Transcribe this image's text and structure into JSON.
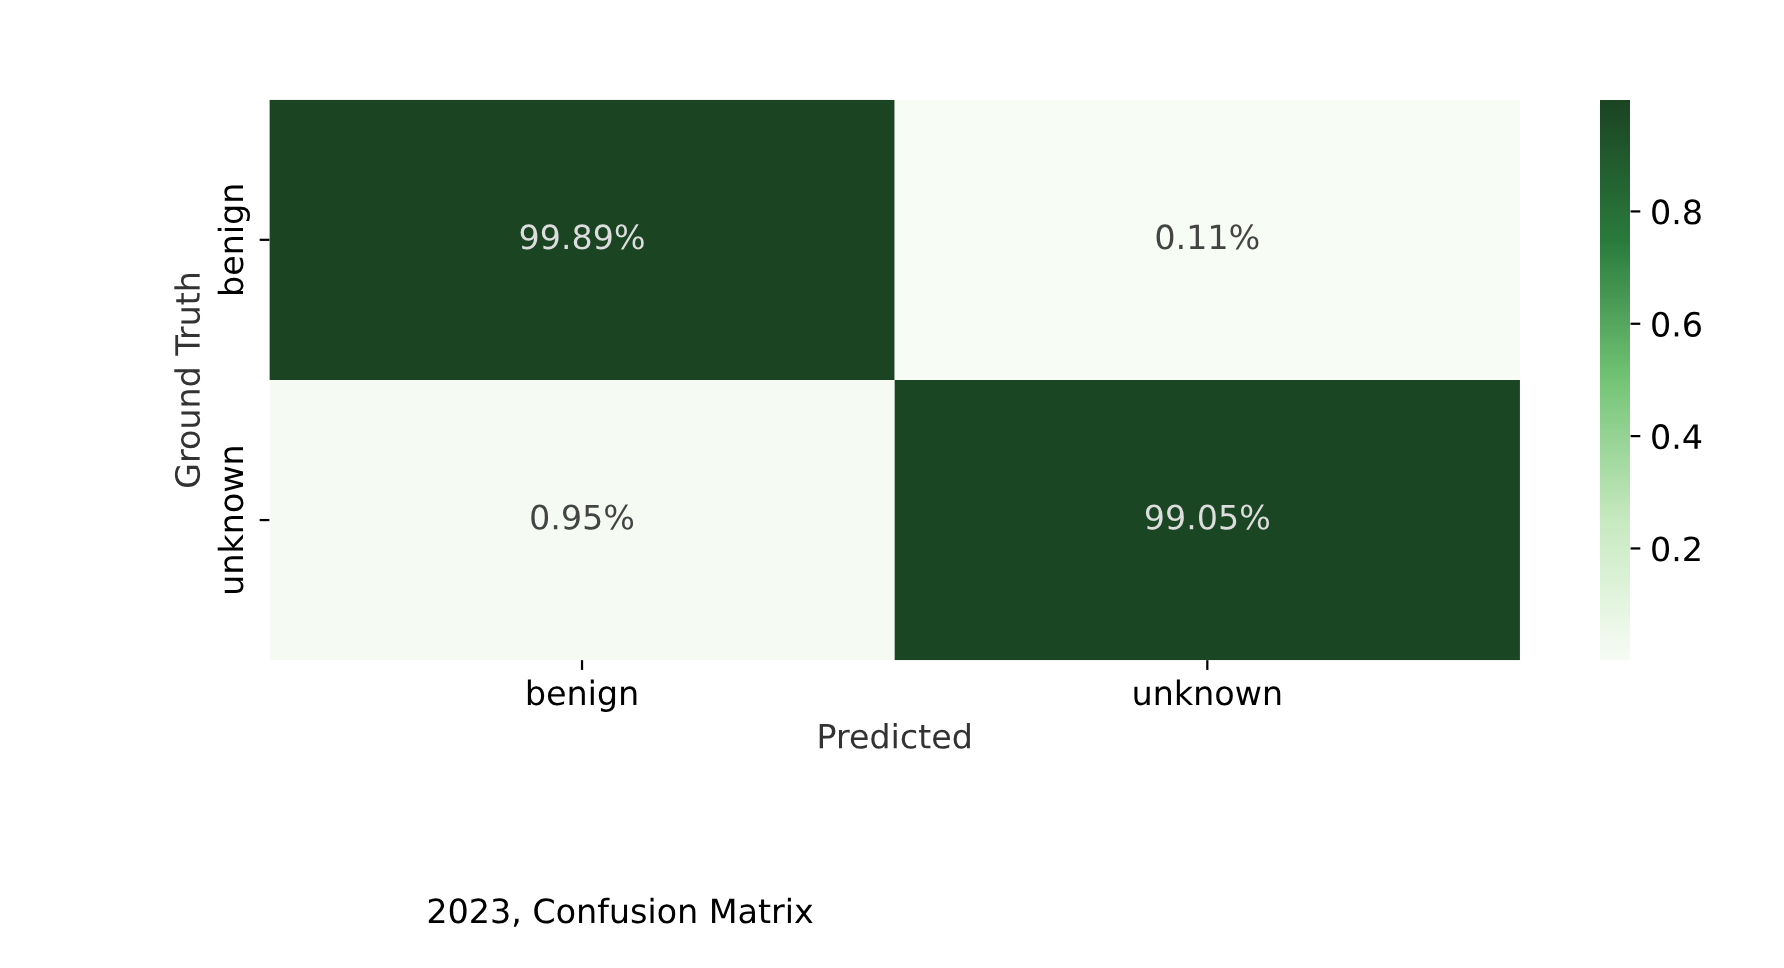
{
  "chart_data": {
    "type": "heatmap",
    "categories": [
      "benign",
      "unknown"
    ],
    "y_categories": [
      "benign",
      "unknown"
    ],
    "cells": [
      [
        0.9989,
        0.0011
      ],
      [
        0.0095,
        0.9905
      ]
    ],
    "cell_labels": [
      [
        "99.89%",
        "0.11%"
      ],
      [
        "0.95%",
        "99.05%"
      ]
    ],
    "clim": [
      0.0011,
      0.9989
    ],
    "cticks": [
      0.2,
      0.4,
      0.6,
      0.8
    ],
    "xlabel": "Predicted",
    "ylabel": "Ground Truth",
    "annotations": [
      "2023, Confusion Matrix"
    ]
  }
}
